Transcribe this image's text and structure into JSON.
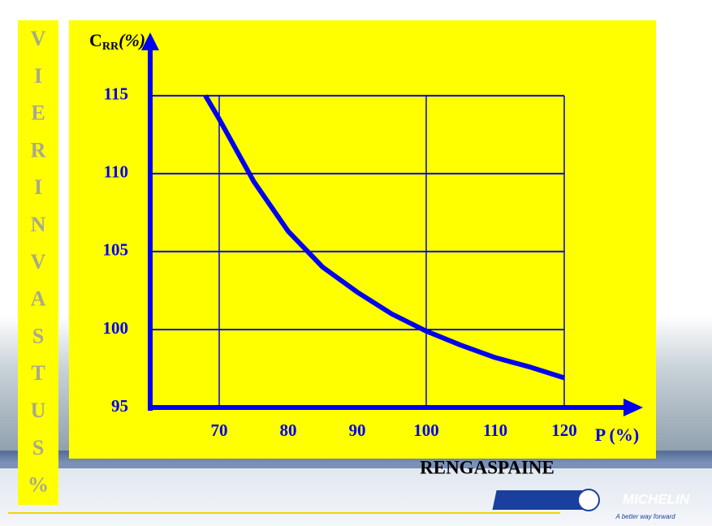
{
  "chart_data": {
    "type": "line",
    "y_label": [
      "C",
      "RR",
      "(%)"
    ],
    "x_label": "P (%)",
    "side_label": [
      "V",
      "I",
      "E",
      "R",
      "I",
      "N",
      "V",
      "A",
      "S",
      "T",
      "U",
      "S",
      "%"
    ],
    "footer_label": "RENGASPAINE",
    "logo": {
      "name": "MICHELIN",
      "tagline": "A better way forward"
    },
    "x": [
      68,
      70,
      75,
      80,
      85,
      90,
      95,
      100,
      105,
      110,
      115,
      120
    ],
    "values": [
      115,
      113.5,
      109.5,
      106.3,
      104,
      102.4,
      101,
      99.9,
      99,
      98.2,
      97.6,
      96.9
    ],
    "color": "#0000ee",
    "xlim": [
      60,
      130
    ],
    "ylim": [
      95,
      119
    ],
    "xticks": [
      70,
      80,
      90,
      100,
      110,
      120
    ],
    "yticks": [
      95,
      100,
      105,
      110,
      115
    ],
    "xgrid": [
      70,
      100,
      120
    ],
    "grid": true
  }
}
